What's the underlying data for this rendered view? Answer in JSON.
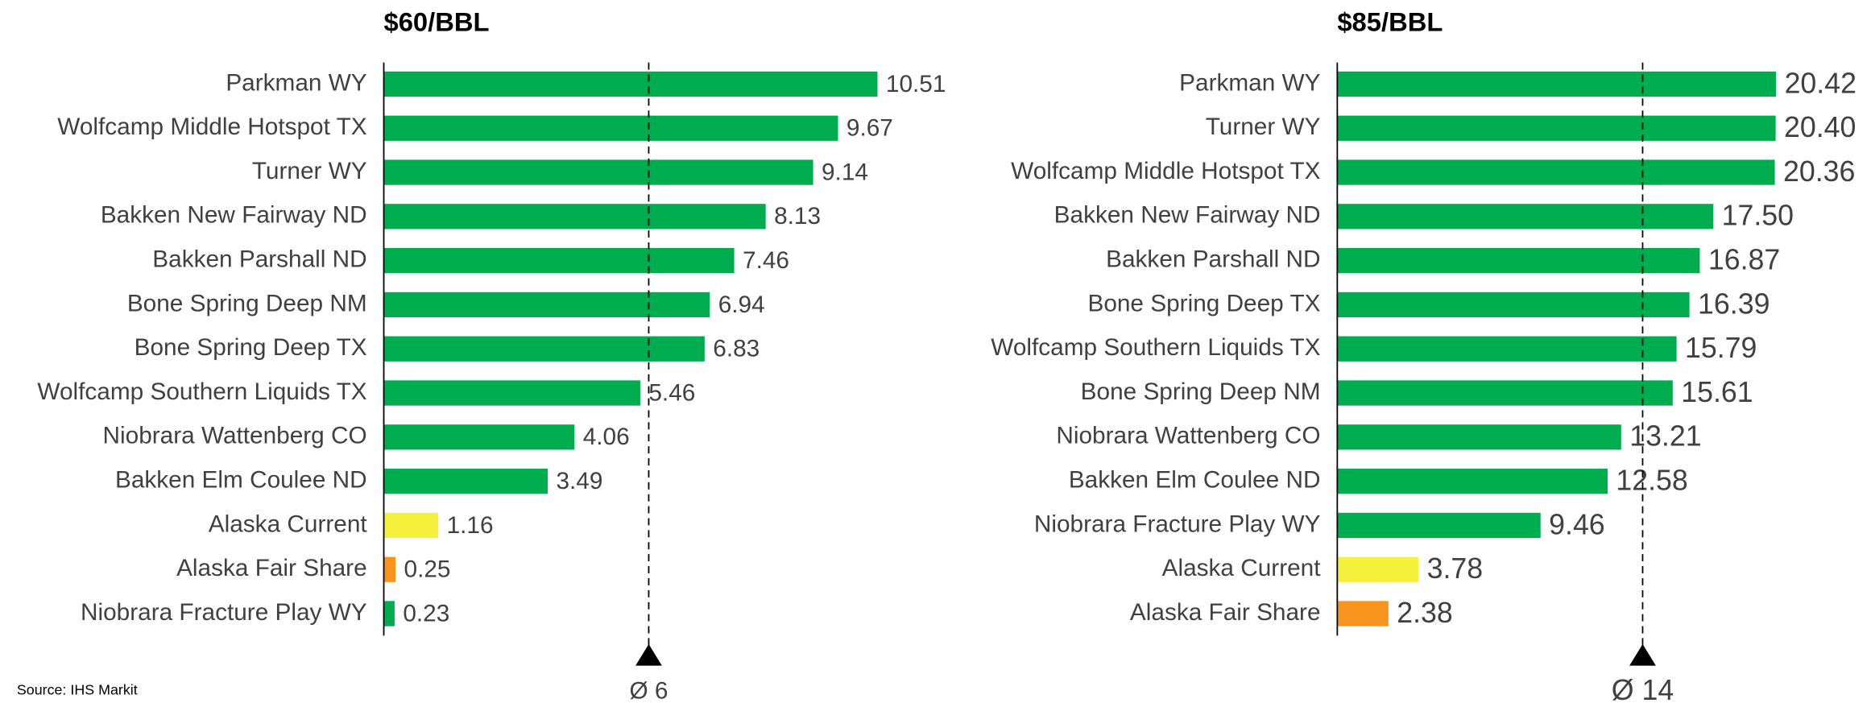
{
  "chart_data": [
    {
      "type": "hbar",
      "title": "$60/BBL",
      "categories": [
        "Parkman WY",
        "Wolfcamp Middle Hotspot TX",
        "Turner WY",
        "Bakken New Fairway ND",
        "Bakken Parshall ND",
        "Bone Spring Deep NM",
        "Bone Spring Deep TX",
        "Wolfcamp Southern Liquids TX",
        "Niobrara Wattenberg CO",
        "Bakken Elm Coulee ND",
        "Alaska Current",
        "Alaska Fair Share",
        "Niobrara Fracture Play WY"
      ],
      "values": [
        10.51,
        9.67,
        9.14,
        8.13,
        7.46,
        6.94,
        6.83,
        5.46,
        4.06,
        3.49,
        1.16,
        0.25,
        0.23
      ],
      "colors": [
        "#00ad4e",
        "#00ad4e",
        "#00ad4e",
        "#00ad4e",
        "#00ad4e",
        "#00ad4e",
        "#00ad4e",
        "#00ad4e",
        "#00ad4e",
        "#00ad4e",
        "#f5f03c",
        "#f7941d",
        "#00ad4e"
      ],
      "average": {
        "value": 5.64,
        "label": "Ø 6"
      },
      "xlim": [
        0,
        12
      ]
    },
    {
      "type": "hbar",
      "title": "$85/BBL",
      "categories": [
        "Parkman WY",
        "Turner WY",
        "Wolfcamp Middle Hotspot TX",
        "Bakken New Fairway ND",
        "Bakken Parshall ND",
        "Bone Spring Deep TX",
        "Wolfcamp Southern Liquids TX",
        "Bone Spring Deep NM",
        "Niobrara Wattenberg CO",
        "Bakken Elm Coulee ND",
        "Niobrara Fracture Play WY",
        "Alaska Current",
        "Alaska Fair Share"
      ],
      "values": [
        20.42,
        20.4,
        20.36,
        17.5,
        16.87,
        16.39,
        15.79,
        15.61,
        13.21,
        12.58,
        9.46,
        3.78,
        2.38
      ],
      "value_labels": [
        "20.42",
        "20.40",
        "20.36",
        "17.50",
        "16.87",
        "16.39",
        "15.79",
        "15.61",
        "13.21",
        "12.58",
        "9.46",
        "3.78",
        "2.38"
      ],
      "colors": [
        "#00ad4e",
        "#00ad4e",
        "#00ad4e",
        "#00ad4e",
        "#00ad4e",
        "#00ad4e",
        "#00ad4e",
        "#00ad4e",
        "#00ad4e",
        "#00ad4e",
        "#00ad4e",
        "#f5f03c",
        "#f7941d"
      ],
      "average": {
        "value": 14.21,
        "label": "Ø 14"
      },
      "xlim": [
        0,
        24
      ]
    }
  ],
  "source": "Source: IHS Markit"
}
